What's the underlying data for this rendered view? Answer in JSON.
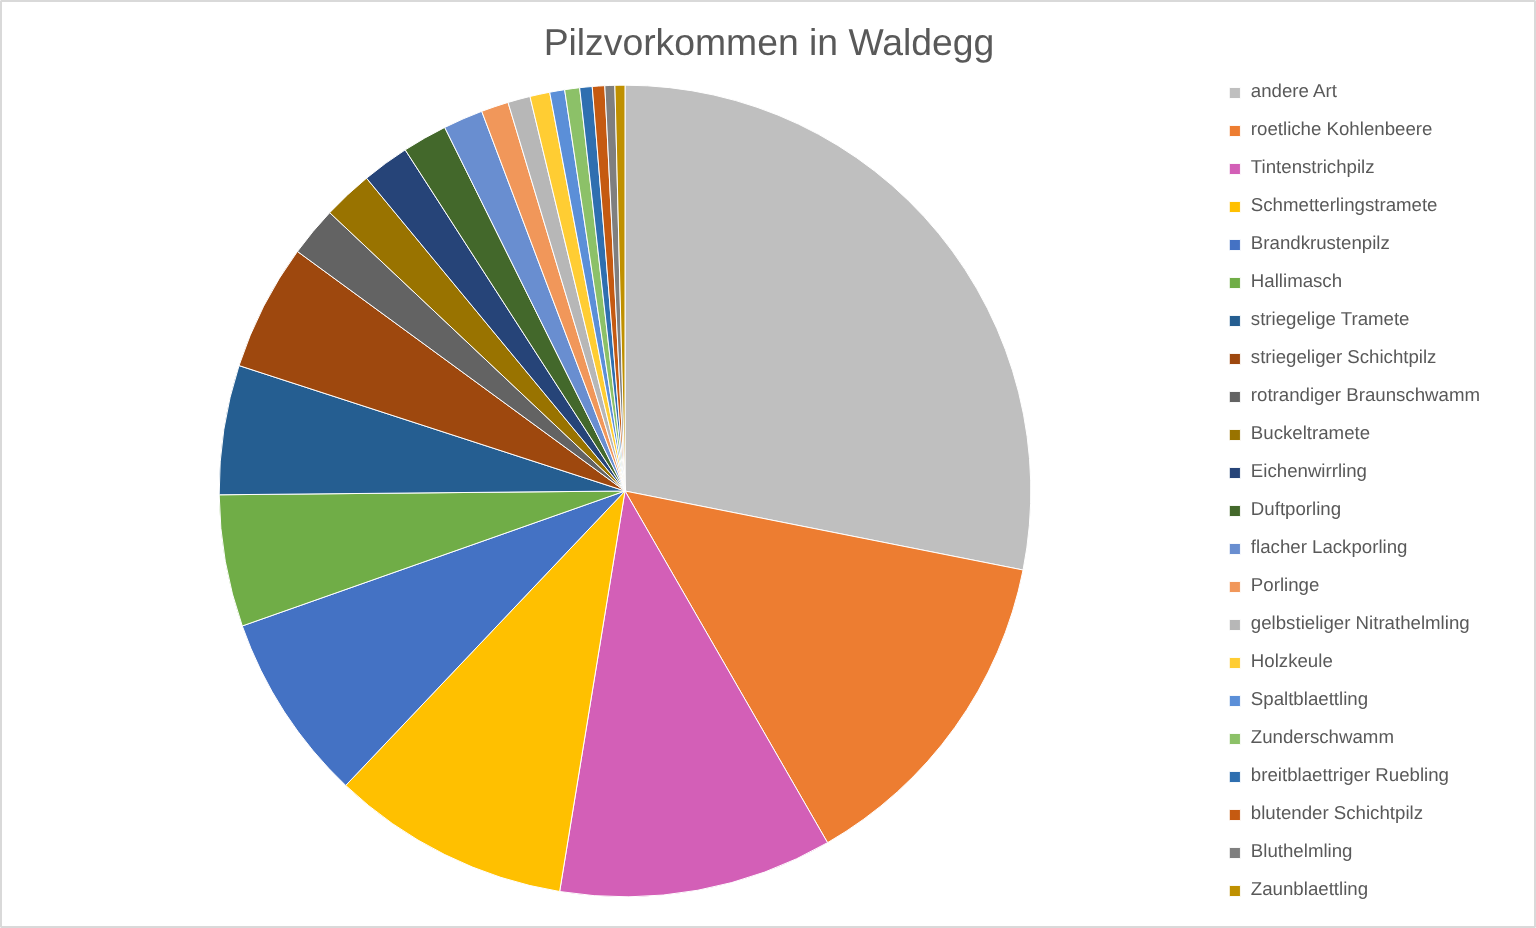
{
  "chart_data": {
    "type": "pie",
    "title": "Pilzvorkommen in Waldegg",
    "categories": [
      "andere Art",
      "roetliche Kohlenbeere",
      "Tintenstrichpilz",
      "Schmetterlingstramete",
      "Brandkrustenpilz",
      "Hallimasch",
      "striegelige Tramete",
      "striegeliger Schichtpilz",
      "rotrandiger Braunschwamm",
      "Buckeltramete",
      "Eichenwirrling",
      "Duftporling",
      "flacher Lackporling",
      "Porlinge",
      "gelbstieliger Nitrathelmling",
      "Holzkeule",
      "Spaltblaettling",
      "Zunderschwamm",
      "breitblaettriger Ruebling",
      "blutender Schichtpilz",
      "Bluthelmling",
      "Zaunblaettling"
    ],
    "values": [
      28.4,
      13.7,
      11.0,
      9.6,
      7.6,
      5.3,
      5.2,
      5.1,
      2.0,
      2.0,
      1.9,
      1.8,
      1.6,
      1.1,
      0.9,
      0.8,
      0.6,
      0.6,
      0.5,
      0.5,
      0.4,
      0.4
    ],
    "colors": [
      "#bfbfbf",
      "#ed7d31",
      "#d35fb7",
      "#ffc000",
      "#4472c4",
      "#70ad47",
      "#255e91",
      "#9e480e",
      "#636363",
      "#997300",
      "#264478",
      "#43682b",
      "#698ed0",
      "#f1975a",
      "#b7b7b7",
      "#ffcd33",
      "#5b8fd8",
      "#8cc168",
      "#2f6fb0",
      "#c55a11",
      "#7f7f7f",
      "#bf9000"
    ],
    "legend": "right"
  }
}
